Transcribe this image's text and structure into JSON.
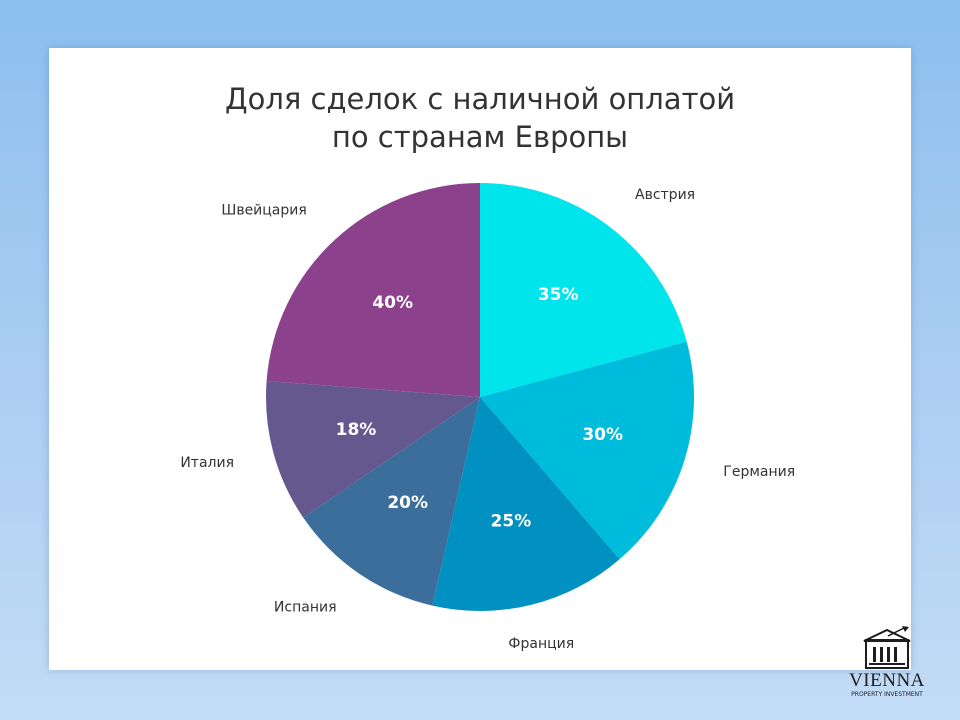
{
  "chart_data": {
    "type": "pie",
    "title_lines": [
      "Доля сделок с наличной оплатой",
      "по странам Европы"
    ],
    "start_angle_deg": 0,
    "direction": "clockwise",
    "slices": [
      {
        "category": "Австрия",
        "label": "35%",
        "value": 35,
        "color": "#00e5ec"
      },
      {
        "category": "Германия",
        "label": "30%",
        "value": 30,
        "color": "#00bcdc"
      },
      {
        "category": "Франция",
        "label": "25%",
        "value": 25,
        "color": "#0090c2"
      },
      {
        "category": "Испания",
        "label": "20%",
        "value": 20,
        "color": "#3b6e9b"
      },
      {
        "category": "Италия",
        "label": "18%",
        "value": 18,
        "color": "#64588f"
      },
      {
        "category": "Швейцария",
        "label": "40%",
        "value": 40,
        "color": "#8b418b"
      }
    ]
  },
  "logo": {
    "name": "VIENNA",
    "subtitle": "PROPERTY INVESTMENT",
    "icon": "bank-building-icon"
  }
}
